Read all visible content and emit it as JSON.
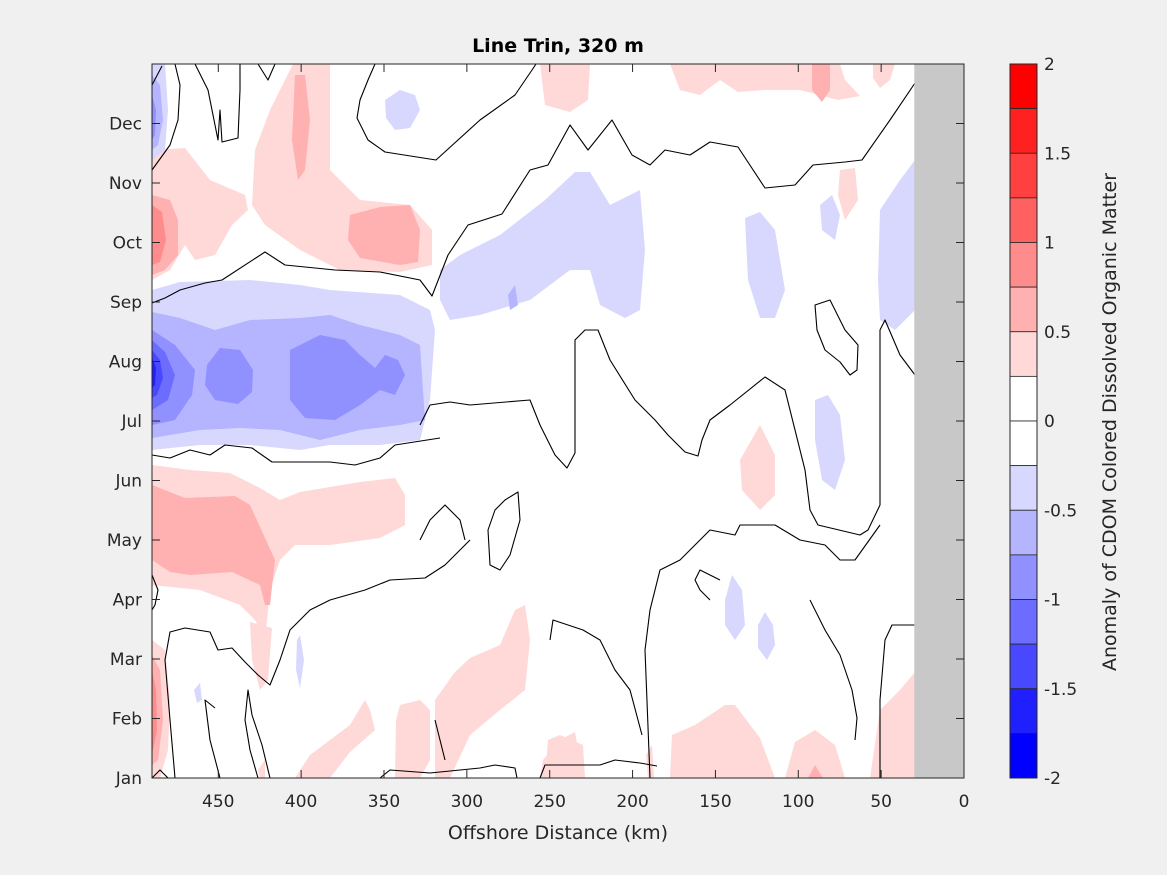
{
  "chart_data": {
    "type": "heatmap",
    "subtype": "filled-contour",
    "title": "Line Trin, 320 m",
    "xlabel": "Offshore Distance (km)",
    "ylabel": "",
    "x_direction": "reversed",
    "xlim": [
      0,
      490
    ],
    "xticks": [
      450,
      400,
      350,
      300,
      250,
      200,
      150,
      100,
      50,
      0
    ],
    "ylim": [
      1,
      13
    ],
    "yticks": [
      {
        "value": 1,
        "label": "Jan"
      },
      {
        "value": 2,
        "label": "Feb"
      },
      {
        "value": 3,
        "label": "Mar"
      },
      {
        "value": 4,
        "label": "Apr"
      },
      {
        "value": 5,
        "label": "May"
      },
      {
        "value": 6,
        "label": "Jun"
      },
      {
        "value": 7,
        "label": "Jul"
      },
      {
        "value": 8,
        "label": "Aug"
      },
      {
        "value": 9,
        "label": "Sep"
      },
      {
        "value": 10,
        "label": "Oct"
      },
      {
        "value": 11,
        "label": "Nov"
      },
      {
        "value": 12,
        "label": "Dec"
      }
    ],
    "no_data_region": {
      "x_from_km": 0,
      "x_to_km": 30,
      "color": "#c8c8c8"
    },
    "colorbar": {
      "label": "Anomaly of Colored Dissolved Organic Matter",
      "label_full": "Anomaly of CDOM Colored Dissolved Organic Matter",
      "clim": [
        -2,
        2
      ],
      "ticks": [
        2,
        1.5,
        1,
        0.5,
        0,
        -0.5,
        -1,
        -1.5,
        -2
      ],
      "tick_labels": [
        "2",
        "1.5",
        "1",
        "0.5",
        "0",
        "-0.5",
        "-1",
        "-1.5",
        "-2"
      ],
      "levels": [
        {
          "from": 1.75,
          "to": 2.0,
          "color": "#ff0000"
        },
        {
          "from": 1.5,
          "to": 1.75,
          "color": "#ff2020"
        },
        {
          "from": 1.25,
          "to": 1.5,
          "color": "#ff4040"
        },
        {
          "from": 1.0,
          "to": 1.25,
          "color": "#ff6060"
        },
        {
          "from": 0.75,
          "to": 1.0,
          "color": "#ff8c8c"
        },
        {
          "from": 0.5,
          "to": 0.75,
          "color": "#ffb0b0"
        },
        {
          "from": 0.25,
          "to": 0.5,
          "color": "#ffd8d8"
        },
        {
          "from": 0.0,
          "to": 0.25,
          "color": "#ffffff"
        },
        {
          "from": -0.25,
          "to": 0.0,
          "color": "#ffffff"
        },
        {
          "from": -0.5,
          "to": -0.25,
          "color": "#d8d8ff"
        },
        {
          "from": -0.75,
          "to": -0.5,
          "color": "#b4b4ff"
        },
        {
          "from": -1.0,
          "to": -0.75,
          "color": "#9090ff"
        },
        {
          "from": -1.25,
          "to": -1.0,
          "color": "#6c6cff"
        },
        {
          "from": -1.5,
          "to": -1.25,
          "color": "#4848ff"
        },
        {
          "from": -1.75,
          "to": -1.5,
          "color": "#2020ff"
        },
        {
          "from": -2.0,
          "to": -1.75,
          "color": "#0000ff"
        }
      ]
    },
    "zero_contour_color": "#000000",
    "features": [
      {
        "name": "strong-negative-core-august",
        "x_km": [
          350,
          490
        ],
        "month": 8,
        "min_value": -1.75,
        "note": "Blue band spanning ~330-490 km, Jul–Sep, strongest at ~490 km"
      },
      {
        "name": "positive-october-nearshore-west",
        "x_km": [
          450,
          490
        ],
        "month": 10,
        "max_value": 1.0
      },
      {
        "name": "positive-oct-340-390km",
        "x_km": [
          330,
          400
        ],
        "month": 9.9,
        "max_value": 0.75
      },
      {
        "name": "positive-dec-390km",
        "x_km": [
          380,
          395
        ],
        "month": 12.3,
        "max_value": 0.75
      },
      {
        "name": "positive-may-400-490km",
        "x_km": [
          400,
          490
        ],
        "month": 5.2,
        "max_value": 0.75
      },
      {
        "name": "positive-feb-490km",
        "x_km": [
          480,
          490
        ],
        "month": 2.0,
        "max_value": 1.0
      },
      {
        "name": "negative-sep-oct-200-300km",
        "x_km": [
          195,
          320
        ],
        "month": 9.5,
        "min_value": -0.5
      },
      {
        "name": "negative-dec-490km",
        "x_km": [
          480,
          490
        ],
        "month": 12.2,
        "min_value": -0.75
      },
      {
        "name": "positive-dec-jan-top-right",
        "x_km": [
          50,
          200
        ],
        "month": 12.8,
        "max_value": 0.75
      },
      {
        "name": "positive-jan-feb-bottom-right",
        "x_km": [
          30,
          200
        ],
        "month": 1.5,
        "max_value": 0.75
      }
    ]
  }
}
